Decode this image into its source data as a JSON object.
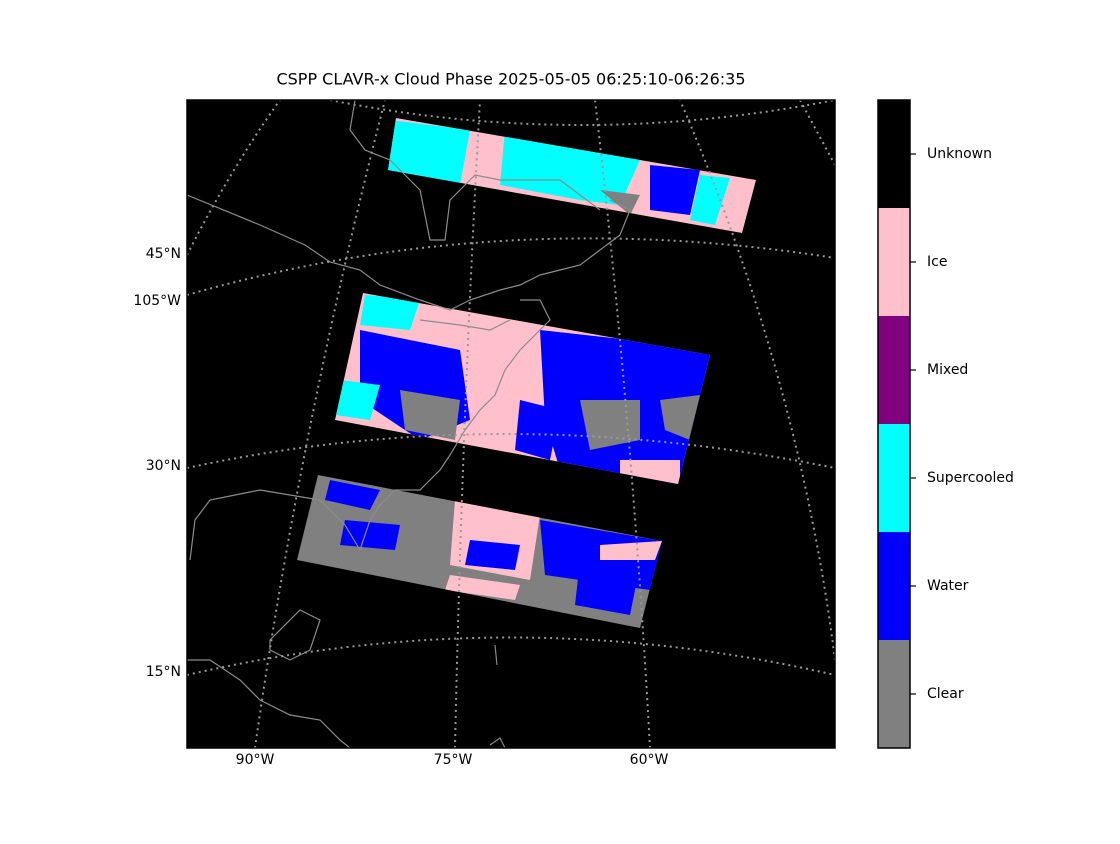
{
  "title": "CSPP CLAVR-x Cloud Phase 2025-05-05 06:25:10-06:26:35",
  "map": {
    "lat_labels": [
      "45°N",
      "30°N",
      "15°N"
    ],
    "lon_labels_left": [
      "105°W"
    ],
    "lon_labels_bottom": [
      "90°W",
      "75°W",
      "60°W"
    ]
  },
  "colorbar": {
    "classes": [
      {
        "label": "Clear",
        "color": "#808080"
      },
      {
        "label": "Water",
        "color": "#0000ff"
      },
      {
        "label": "Supercooled",
        "color": "#00ffff"
      },
      {
        "label": "Mixed",
        "color": "#800080"
      },
      {
        "label": "Ice",
        "color": "#ffc0cb"
      },
      {
        "label": "Unknown",
        "color": "#000000"
      }
    ]
  }
}
